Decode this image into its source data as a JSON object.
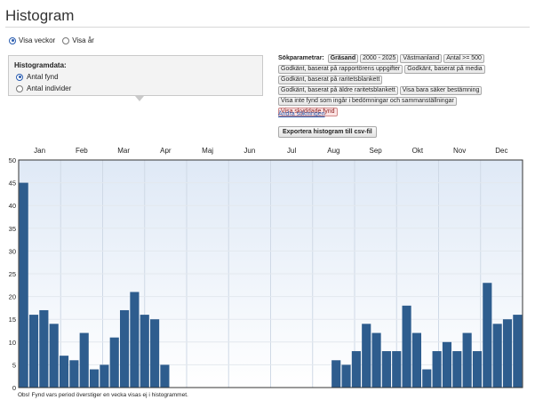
{
  "page": {
    "title": "Histogram"
  },
  "view_toggle": [
    {
      "label": "Visa veckor",
      "checked": true
    },
    {
      "label": "Visa år",
      "checked": false
    }
  ],
  "histogram_data": {
    "heading": "Histogramdata:",
    "options": [
      {
        "label": "Antal fynd",
        "checked": true
      },
      {
        "label": "Antal individer",
        "checked": false
      }
    ]
  },
  "search_params": {
    "label": "Sökparametrar:",
    "chips": [
      {
        "text": "Gräsand",
        "style": "bold"
      },
      {
        "text": "2000 - 2025",
        "style": "normal"
      },
      {
        "text": "Västmanland",
        "style": "normal"
      },
      {
        "text": "Antal >= 500",
        "style": "normal"
      },
      {
        "text": "Godkänt, baserat på rapportörens uppgifter",
        "style": "normal"
      },
      {
        "text": "Godkänt, baserat på media",
        "style": "normal"
      },
      {
        "text": "Godkänt, baserat på raritetsblankett",
        "style": "normal"
      },
      {
        "text": "Godkänt, baserat på äldre raritetsblankett",
        "style": "normal"
      },
      {
        "text": "Visa bara säker bestämning",
        "style": "normal"
      },
      {
        "text": "Visa inte fynd som ingår i bedömningar och sammanställningar",
        "style": "normal"
      },
      {
        "text": "Visa skyddade fynd",
        "style": "red"
      }
    ],
    "change_link": "Ändra sökningen",
    "export_button": "Exportera histogram till csv-fil"
  },
  "footer_note": "Obs! Fynd vars period överstiger en vecka visas ej i histogrammet.",
  "colors": {
    "bar": "#2e5d8e",
    "accent_link": "#2a5db0"
  },
  "chart_data": {
    "type": "bar",
    "months": [
      "Jan",
      "Feb",
      "Mar",
      "Apr",
      "Maj",
      "Jun",
      "Jul",
      "Aug",
      "Sep",
      "Okt",
      "Nov",
      "Dec"
    ],
    "y_ticks": [
      0,
      5,
      10,
      15,
      20,
      25,
      30,
      35,
      40,
      45,
      50
    ],
    "ylim": [
      0,
      50
    ],
    "grid": true,
    "series": [
      {
        "values": [
          45,
          16,
          17,
          14,
          7,
          6,
          12,
          4,
          5,
          11,
          17,
          21,
          16,
          15,
          5,
          0,
          0,
          0,
          0,
          0,
          0,
          0,
          0,
          0,
          0,
          0,
          0,
          0,
          0,
          0,
          0,
          6,
          5,
          8,
          14,
          12,
          8,
          8,
          18,
          12,
          4,
          8,
          10,
          8,
          12,
          8,
          23,
          14,
          15,
          16
        ]
      }
    ]
  }
}
